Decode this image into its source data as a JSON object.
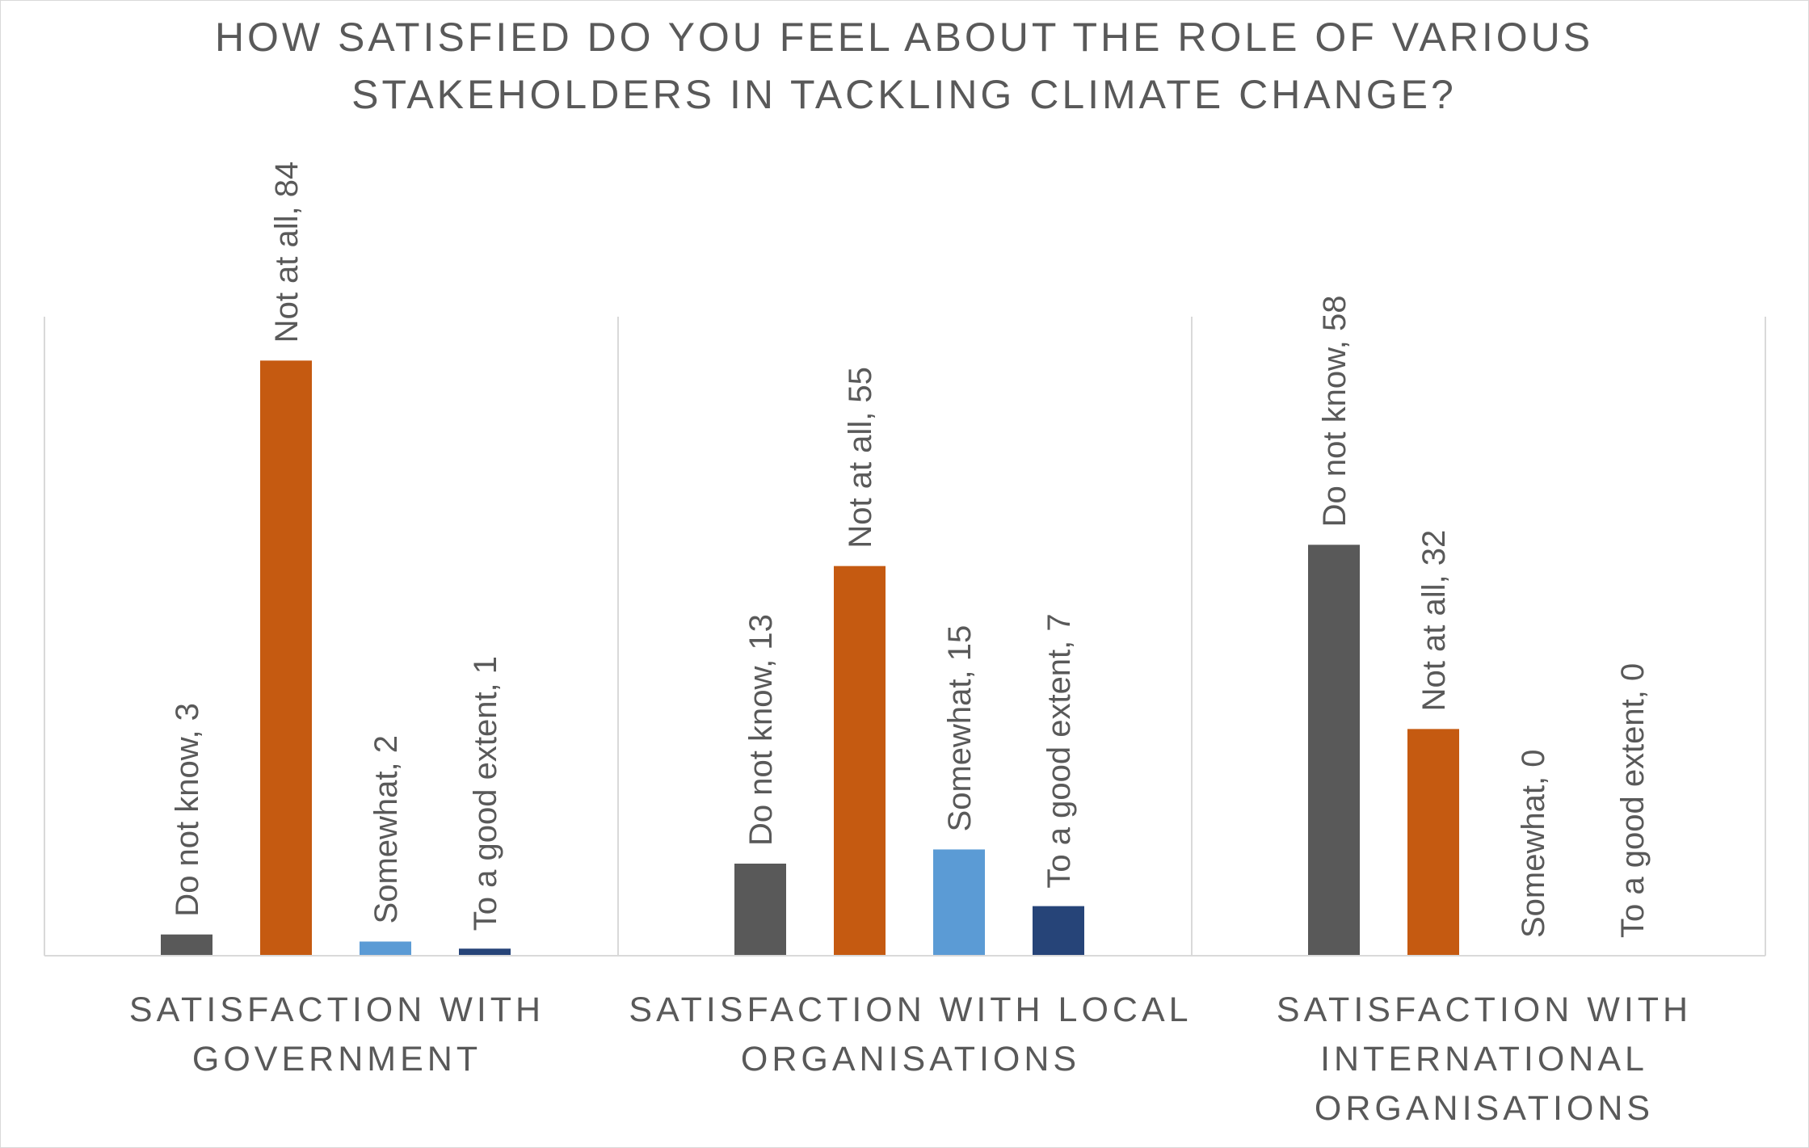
{
  "chart_data": {
    "type": "bar",
    "title_lines": [
      "HOW SATISFIED DO YOU FEEL ABOUT THE ROLE OF VARIOUS",
      "STAKEHOLDERS IN TACKLING CLIMATE CHANGE?"
    ],
    "categories": [
      {
        "label_lines": [
          "SATISFACTION WITH",
          "GOVERNMENT"
        ]
      },
      {
        "label_lines": [
          "SATISFACTION WITH LOCAL",
          "ORGANISATIONS"
        ]
      },
      {
        "label_lines": [
          "SATISFACTION WITH",
          "INTERNATIONAL",
          "ORGANISATIONS"
        ]
      }
    ],
    "series": [
      {
        "name": "Do not know",
        "color": "#595959",
        "values": [
          3,
          13,
          58
        ]
      },
      {
        "name": "Not at all",
        "color": "#c55a11",
        "values": [
          84,
          55,
          32
        ]
      },
      {
        "name": "Somewhat",
        "color": "#5b9bd5",
        "values": [
          2,
          15,
          0
        ]
      },
      {
        "name": "To a good extent",
        "color": "#264478",
        "values": [
          1,
          7,
          0
        ]
      }
    ],
    "data_labels": [
      [
        "Do not know, 3",
        "Not at all, 84",
        "Somewhat, 2",
        "To a good extent, 1"
      ],
      [
        "Do not know, 13",
        "Not at all, 55",
        "Somewhat, 15",
        "To a good extent, 7"
      ],
      [
        "Do not know, 58",
        "Not at all, 32",
        "Somewhat, 0",
        "To a good extent, 0"
      ]
    ],
    "ylim": [
      0,
      84
    ],
    "grid": false,
    "category_separators": true,
    "legend": "none"
  }
}
